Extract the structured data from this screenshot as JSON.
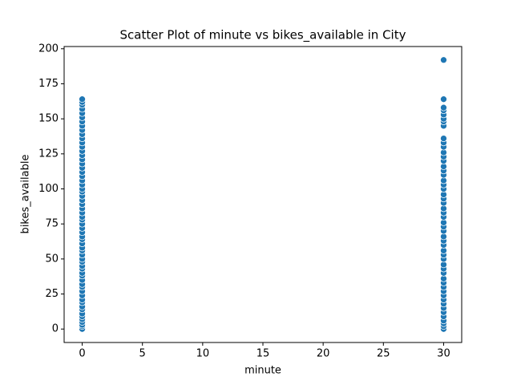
{
  "chart_data": {
    "type": "scatter",
    "title": "Scatter Plot of minute vs bikes_available in City",
    "x_label": "minute",
    "y_label": "bikes_available",
    "color": "#1f77b4",
    "xlim": [
      -1.5,
      31.5
    ],
    "xticks": [
      0,
      5,
      10,
      15,
      20,
      25,
      30
    ],
    "ylim": [
      -9.6,
      201.6
    ],
    "yticks": [
      0,
      25,
      50,
      75,
      100,
      125,
      150,
      175,
      200
    ],
    "x": [
      0,
      0,
      0,
      0,
      0,
      0,
      0,
      0,
      0,
      0,
      0,
      0,
      0,
      0,
      0,
      0,
      0,
      0,
      0,
      0,
      0,
      0,
      0,
      0,
      0,
      0,
      0,
      0,
      0,
      0,
      0,
      0,
      0,
      0,
      0,
      0,
      0,
      0,
      0,
      0,
      0,
      0,
      0,
      0,
      0,
      0,
      0,
      0,
      0,
      0,
      0,
      0,
      0,
      0,
      0,
      0,
      0,
      0,
      0,
      0,
      0,
      0,
      30,
      30,
      30,
      30,
      30,
      30,
      30,
      30,
      30,
      30,
      30,
      30,
      30,
      30,
      30,
      30,
      30,
      30,
      30,
      30,
      30,
      30,
      30,
      30,
      30,
      30,
      30,
      30,
      30,
      30,
      30,
      30,
      30,
      30,
      30,
      30,
      30,
      30,
      30,
      30,
      30,
      30,
      30,
      30,
      30,
      30,
      30,
      30,
      30,
      30,
      30,
      30
    ],
    "y": [
      0,
      2,
      3,
      5,
      7,
      9,
      11,
      14,
      16,
      19,
      21,
      24,
      27,
      30,
      32,
      35,
      38,
      40,
      43,
      45,
      48,
      50,
      53,
      56,
      58,
      61,
      64,
      66,
      69,
      72,
      75,
      78,
      80,
      83,
      86,
      89,
      92,
      95,
      98,
      100,
      103,
      106,
      109,
      112,
      115,
      118,
      121,
      124,
      127,
      130,
      133,
      136,
      139,
      142,
      145,
      148,
      151,
      154,
      157,
      160,
      162,
      164,
      0,
      2,
      4,
      6,
      9,
      12,
      15,
      18,
      21,
      24,
      27,
      30,
      33,
      36,
      40,
      43,
      46,
      50,
      53,
      56,
      60,
      63,
      66,
      70,
      73,
      76,
      80,
      83,
      86,
      90,
      93,
      96,
      100,
      103,
      106,
      110,
      113,
      116,
      120,
      123,
      126,
      130,
      133,
      136,
      145,
      148,
      150,
      153,
      156,
      158,
      164,
      192
    ]
  }
}
